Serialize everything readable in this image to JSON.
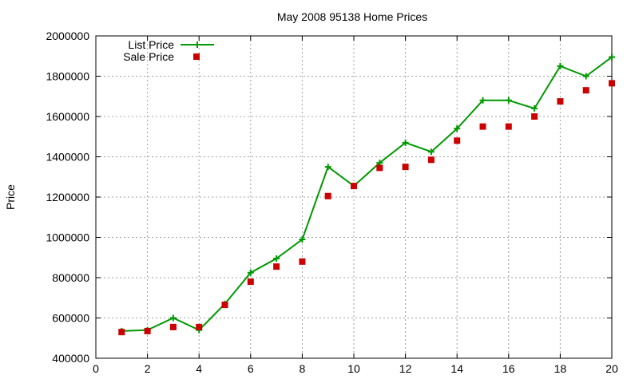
{
  "chart_data": {
    "type": "line",
    "title": "May 2008 95138 Home Prices",
    "xlabel": "",
    "ylabel": "Price",
    "xlim": [
      0,
      20
    ],
    "ylim": [
      400000,
      2000000
    ],
    "xticks": [
      0,
      2,
      4,
      6,
      8,
      10,
      12,
      14,
      16,
      18,
      20
    ],
    "yticks": [
      400000,
      600000,
      800000,
      1000000,
      1200000,
      1400000,
      1600000,
      1800000,
      2000000
    ],
    "grid": true,
    "legend_position": "top-left",
    "series": [
      {
        "name": "List Price",
        "style": "line-with-plus-markers",
        "color": "#009900",
        "x": [
          1,
          2,
          3,
          4,
          5,
          6,
          7,
          8,
          9,
          10,
          11,
          12,
          13,
          14,
          15,
          16,
          17,
          18,
          19,
          20
        ],
        "y": [
          535000,
          540000,
          600000,
          540000,
          670000,
          825000,
          895000,
          990000,
          1350000,
          1255000,
          1370000,
          1470000,
          1425000,
          1540000,
          1680000,
          1680000,
          1640000,
          1850000,
          1800000,
          1895000
        ]
      },
      {
        "name": "Sale Price",
        "style": "square-markers",
        "color": "#cc0000",
        "x": [
          1,
          2,
          3,
          4,
          5,
          6,
          7,
          8,
          9,
          10,
          11,
          12,
          13,
          14,
          15,
          16,
          17,
          18,
          19,
          20
        ],
        "y": [
          530000,
          535000,
          555000,
          555000,
          665000,
          780000,
          855000,
          880000,
          1205000,
          1255000,
          1345000,
          1350000,
          1385000,
          1480000,
          1550000,
          1550000,
          1600000,
          1675000,
          1730000,
          1765000
        ]
      }
    ]
  }
}
